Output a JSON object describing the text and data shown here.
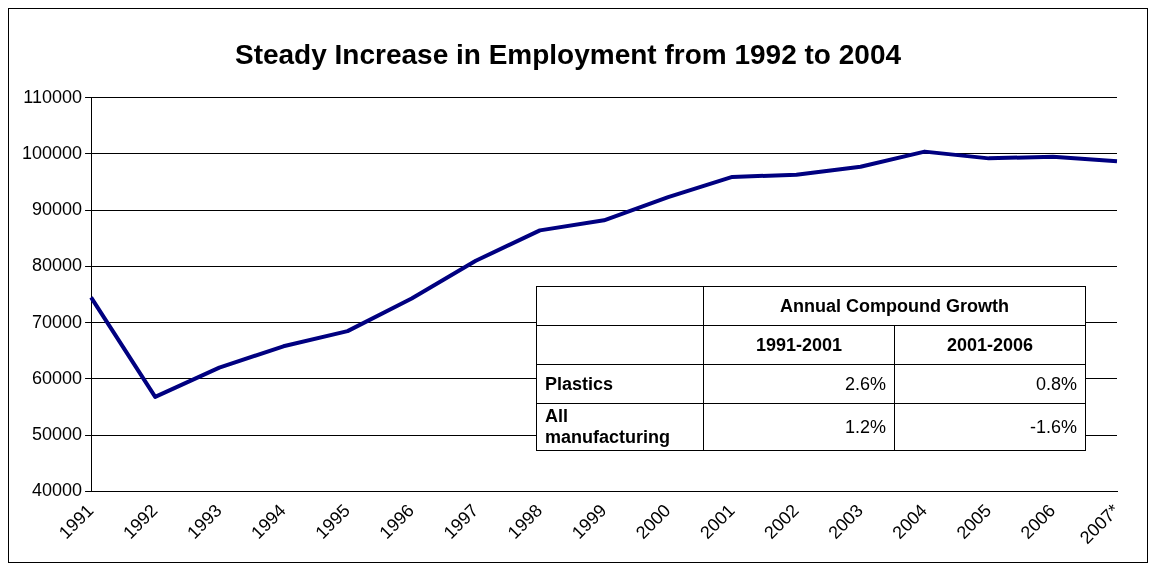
{
  "chart_data": {
    "type": "line",
    "title": "Steady Increase in Employment from 1992 to 2004",
    "categories": [
      "1991",
      "1992",
      "1993",
      "1994",
      "1995",
      "1996",
      "1997",
      "1998",
      "1999",
      "2000",
      "2001",
      "2002",
      "2003",
      "2004",
      "2005",
      "2006",
      "2007*"
    ],
    "series": [
      {
        "color": "#000080",
        "values": [
          74500,
          56800,
          62000,
          65800,
          68500,
          74300,
          81000,
          86400,
          88200,
          92300,
          95900,
          96300,
          97700,
          100400,
          99200,
          99500,
          98700
        ]
      }
    ],
    "ylim": [
      40000,
      110000
    ],
    "yticks": [
      40000,
      50000,
      60000,
      70000,
      80000,
      90000,
      100000,
      110000
    ],
    "grid": "y",
    "legend": false,
    "marker": "none",
    "line_style": "solid",
    "annotations": [
      "Annual Compound Growth",
      "1991-2001",
      "2001-2006",
      "Plastics",
      "2.6%",
      "0.8%",
      "All manufacturing",
      "1.2%",
      "-1.6%"
    ]
  }
}
